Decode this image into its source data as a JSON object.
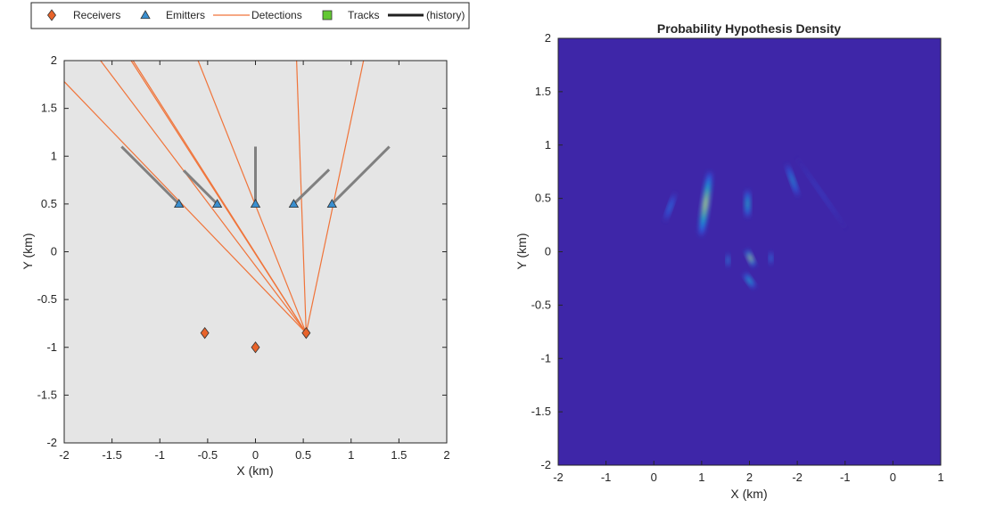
{
  "legend": {
    "items": [
      {
        "label": "Receivers",
        "icon": "diamond-marker",
        "color": "#e8632a"
      },
      {
        "label": "Emitters",
        "icon": "triangle-marker",
        "color": "#3a8fd0"
      },
      {
        "label": "Detections",
        "icon": "line",
        "color": "#f0743a"
      },
      {
        "label": "Tracks",
        "icon": "square-marker",
        "color": "#62c832"
      },
      {
        "label": "(history)",
        "icon": "thick-line",
        "color": "#202020"
      }
    ]
  },
  "chart_data": [
    {
      "type": "scatter",
      "title": "",
      "xlabel": "X (km)",
      "ylabel": "Y (km)",
      "xlim": [
        -2,
        2
      ],
      "ylim": [
        -2,
        2
      ],
      "xticks": [
        "-2",
        "-1.5",
        "-1",
        "-0.5",
        "0",
        "0.5",
        "1",
        "1.5",
        "2"
      ],
      "yticks": [
        "-2",
        "-1.5",
        "-1",
        "-0.5",
        "0",
        "0.5",
        "1",
        "1.5",
        "2"
      ],
      "background": "#e5e5e5",
      "grid": false,
      "legend_position": "top",
      "receivers": [
        {
          "x": -0.53,
          "y": -0.85
        },
        {
          "x": 0.0,
          "y": -1.0
        },
        {
          "x": 0.53,
          "y": -0.85
        }
      ],
      "emitters": [
        {
          "x": -0.8,
          "y": 0.5
        },
        {
          "x": -0.4,
          "y": 0.5
        },
        {
          "x": 0.0,
          "y": 0.5
        },
        {
          "x": 0.4,
          "y": 0.5
        },
        {
          "x": 0.8,
          "y": 0.5
        }
      ],
      "history": [
        {
          "from": [
            -0.8,
            0.5
          ],
          "to": [
            -1.4,
            1.1
          ]
        },
        {
          "from": [
            -0.4,
            0.5
          ],
          "to": [
            -0.75,
            0.85
          ]
        },
        {
          "from": [
            0.0,
            0.5
          ],
          "to": [
            0.0,
            1.1
          ]
        },
        {
          "from": [
            0.4,
            0.5
          ],
          "to": [
            0.77,
            0.86
          ]
        },
        {
          "from": [
            0.8,
            0.5
          ],
          "to": [
            1.4,
            1.1
          ]
        }
      ],
      "detections": {
        "origin": [
          0.53,
          -0.85
        ],
        "ends": [
          [
            -2.0,
            1.78
          ],
          [
            -1.62,
            2.0
          ],
          [
            -1.3,
            2.0
          ],
          [
            -1.28,
            2.0
          ],
          [
            -0.6,
            2.0
          ],
          [
            0.43,
            2.0
          ],
          [
            1.13,
            2.0
          ]
        ]
      }
    },
    {
      "type": "heatmap",
      "title": "Probability Hypothesis Density",
      "xlabel": "X (km)",
      "ylabel": "Y (km)",
      "xticks": [
        "-2",
        "-1",
        "0",
        "1",
        "2",
        "-2",
        "-1",
        "0",
        "1"
      ],
      "yticks": [
        "-2",
        "-1.5",
        "-1",
        "-0.5",
        "0",
        "0.5",
        "1",
        "1.5",
        "2"
      ],
      "ylim": [
        -2,
        2
      ],
      "background": "#3e26a8",
      "grid": false,
      "blobs": [
        {
          "x": -1.66,
          "y": 0.42,
          "sx": 0.04,
          "sy": 0.14,
          "tilt": 20,
          "peak": 0.35
        },
        {
          "x": -0.92,
          "y": 0.45,
          "sx": 0.07,
          "sy": 0.3,
          "tilt": 8,
          "peak": 0.95
        },
        {
          "x": -0.04,
          "y": 0.45,
          "sx": 0.05,
          "sy": 0.13,
          "tilt": 0,
          "peak": 0.6
        },
        {
          "x": 0.9,
          "y": 0.67,
          "sx": 0.04,
          "sy": 0.16,
          "tilt": -20,
          "peak": 0.5
        },
        {
          "x": 1.5,
          "y": 0.55,
          "sx": 0.03,
          "sy": 0.4,
          "tilt": -35,
          "peak": 0.12
        },
        {
          "x": -0.45,
          "y": -0.08,
          "sx": 0.03,
          "sy": 0.06,
          "tilt": 0,
          "peak": 0.55
        },
        {
          "x": 0.02,
          "y": -0.06,
          "sx": 0.05,
          "sy": 0.08,
          "tilt": -25,
          "peak": 1.0
        },
        {
          "x": 0.45,
          "y": -0.06,
          "sx": 0.03,
          "sy": 0.06,
          "tilt": 0,
          "peak": 0.45
        },
        {
          "x": 0.0,
          "y": -0.27,
          "sx": 0.05,
          "sy": 0.08,
          "tilt": -35,
          "peak": 0.6
        }
      ]
    }
  ]
}
